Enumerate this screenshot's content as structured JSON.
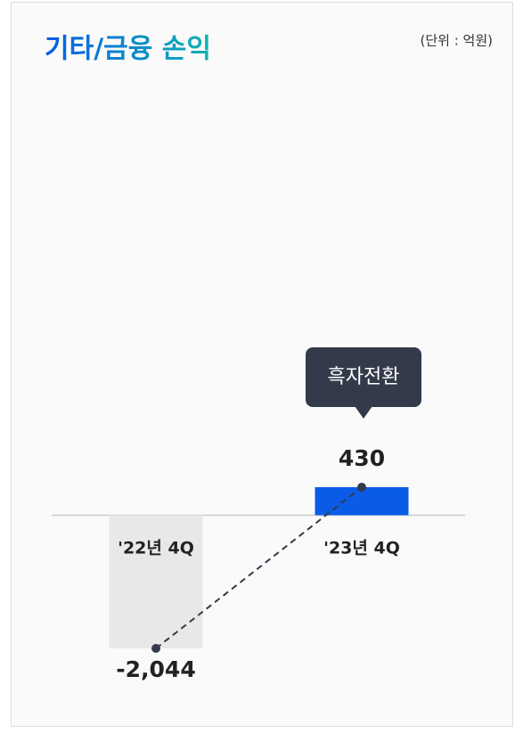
{
  "chart_data": {
    "type": "bar",
    "title": "기타/금융 손익",
    "subtitle": "(단위 : 억원)",
    "annotation": "흑자전환",
    "categories": [
      "'22년 4Q",
      "'23년 4Q"
    ],
    "values": [
      -2044,
      430
    ],
    "value_labels": [
      "-2,044",
      "430"
    ],
    "colors": [
      "#e8e8e8",
      "#0a5ce6"
    ],
    "line_color": "#333a4a"
  }
}
